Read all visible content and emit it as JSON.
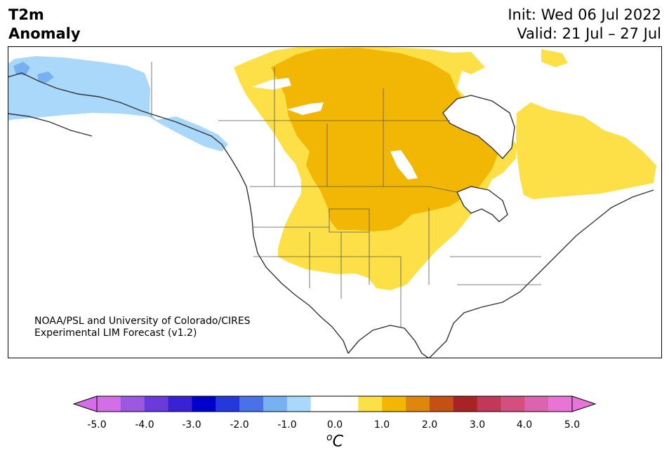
{
  "header": {
    "title": "T2m\nAnomaly",
    "init": "Init: Wed 06 Jul 2022",
    "valid": "Valid: 21 Jul – 27 Jul"
  },
  "credit": {
    "line1": "NOAA/PSL and University of Colorado/CIRES",
    "line2": "Experimental LIM Forecast (v1.2)"
  },
  "colorbar": {
    "ticks": [
      "-5.0",
      "-4.0",
      "-3.0",
      "-2.0",
      "-1.0",
      "0.0",
      "1.0",
      "2.0",
      "3.0",
      "4.0",
      "5.0"
    ],
    "unit_base": "C",
    "unit_sup": "o",
    "under_color": "#d36ee8",
    "over_color": "#e874d8",
    "colors": [
      "#d36ee8",
      "#9b58e0",
      "#6a3adb",
      "#3a22d4",
      "#0000cc",
      "#2538d9",
      "#4a72e8",
      "#78b1f2",
      "#a9d8fb",
      "#ffffff",
      "#ffffff",
      "#fde047",
      "#f2b705",
      "#dd870f",
      "#c45014",
      "#a82424",
      "#c23858",
      "#d3507e",
      "#dc64ae",
      "#e874d8"
    ]
  },
  "map": {
    "anomaly_colors": {
      "pos_0_5_1": "#fde047",
      "pos_1_1_5": "#f2b705",
      "neg_0_5_1": "#a9d8fb",
      "neg_1_1_5": "#78b1f2"
    }
  }
}
